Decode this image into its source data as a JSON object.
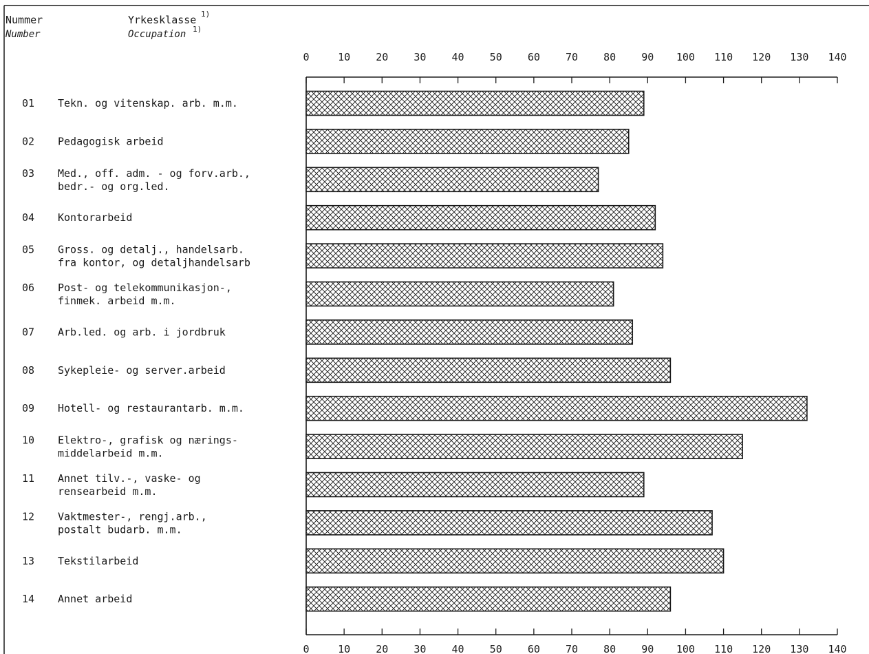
{
  "header": {
    "number_no": "Nummer",
    "number_en": "Number",
    "occupation_no": "Yrkesklasse",
    "occupation_en": "Occupation",
    "footnote_mark": "1)"
  },
  "chart_data": {
    "type": "bar",
    "orientation": "horizontal",
    "title": "",
    "xlabel": "",
    "ylabel": "",
    "xlim": [
      0,
      140
    ],
    "ticks": [
      0,
      10,
      20,
      30,
      40,
      50,
      60,
      70,
      80,
      90,
      100,
      110,
      120,
      130,
      140
    ],
    "tick_labels_top": true,
    "tick_labels_bottom": true,
    "grid": false,
    "bar_fill": "cross-hatch",
    "colors": {
      "ink": "#1a1a1a",
      "background": "#ffffff"
    },
    "rows": [
      {
        "num": "01",
        "label": [
          "Tekn. og vitenskap. arb. m.m."
        ],
        "value": 89
      },
      {
        "num": "02",
        "label": [
          "Pedagogisk arbeid"
        ],
        "value": 85
      },
      {
        "num": "03",
        "label": [
          "Med., off. adm. - og forv.arb.,",
          "bedr.- og org.led."
        ],
        "value": 77
      },
      {
        "num": "04",
        "label": [
          "Kontorarbeid"
        ],
        "value": 92
      },
      {
        "num": "05",
        "label": [
          "Gross. og detalj., handelsarb.",
          "fra kontor, og detaljhandelsarb"
        ],
        "value": 94
      },
      {
        "num": "06",
        "label": [
          "Post- og telekommunikasjon-,",
          "finmek. arbeid m.m."
        ],
        "value": 81
      },
      {
        "num": "07",
        "label": [
          "Arb.led. og arb. i jordbruk"
        ],
        "value": 86
      },
      {
        "num": "08",
        "label": [
          "Sykepleie- og server.arbeid"
        ],
        "value": 96
      },
      {
        "num": "09",
        "label": [
          "Hotell- og restaurantarb. m.m."
        ],
        "value": 132
      },
      {
        "num": "10",
        "label": [
          "Elektro-, grafisk og nærings-",
          "middelarbeid m.m."
        ],
        "value": 115
      },
      {
        "num": "11",
        "label": [
          "Annet tilv.-, vaske- og",
          "rensearbeid m.m."
        ],
        "value": 89
      },
      {
        "num": "12",
        "label": [
          "Vaktmester-, rengj.arb.,",
          "postalt budarb. m.m."
        ],
        "value": 107
      },
      {
        "num": "13",
        "label": [
          "Tekstilarbeid"
        ],
        "value": 110
      },
      {
        "num": "14",
        "label": [
          "Annet arbeid"
        ],
        "value": 96
      }
    ]
  }
}
